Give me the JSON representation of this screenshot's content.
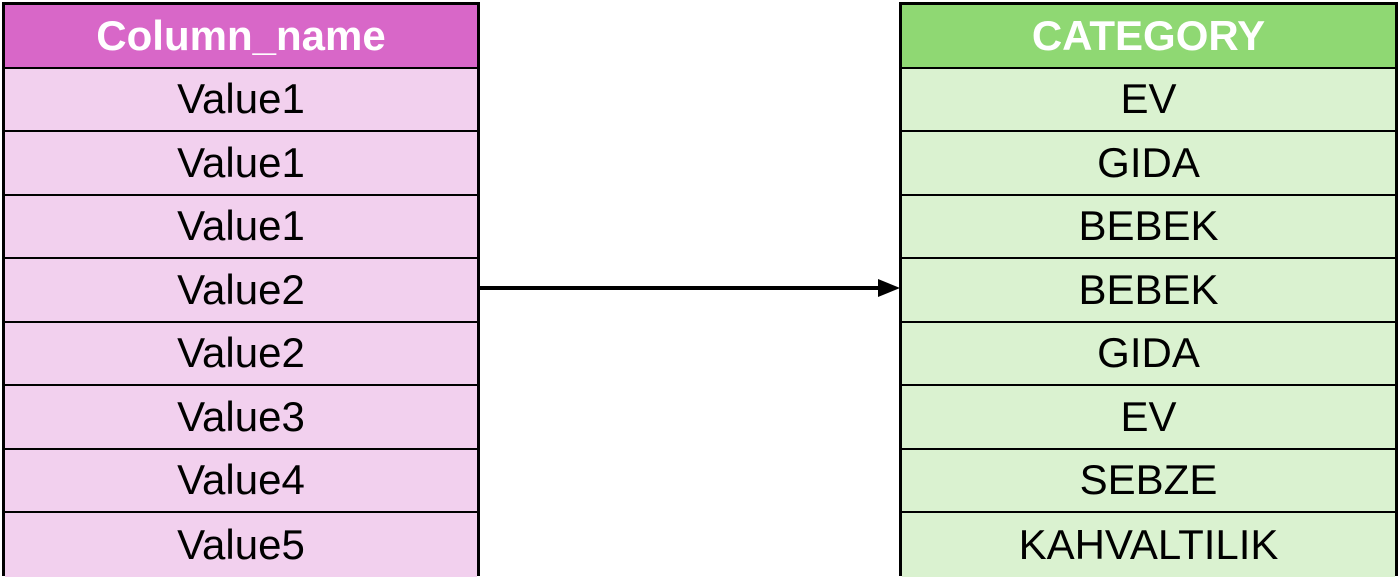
{
  "left_table": {
    "header": "Column_name",
    "header_color": "#d867c8",
    "cell_color": "#f2d0ee",
    "rows": [
      "Value1",
      "Value1",
      "Value1",
      "Value2",
      "Value2",
      "Value3",
      "Value4",
      "Value5"
    ]
  },
  "right_table": {
    "header": "CATEGORY",
    "header_color": "#8fd873",
    "cell_color": "#daf2d0",
    "rows": [
      "EV",
      "GIDA",
      "BEBEK",
      "BEBEK",
      "GIDA",
      "EV",
      "SEBZE",
      "KAHVALTILIK"
    ]
  },
  "connector": {
    "icon": "arrow-right-icon",
    "direction": "left-to-right"
  }
}
